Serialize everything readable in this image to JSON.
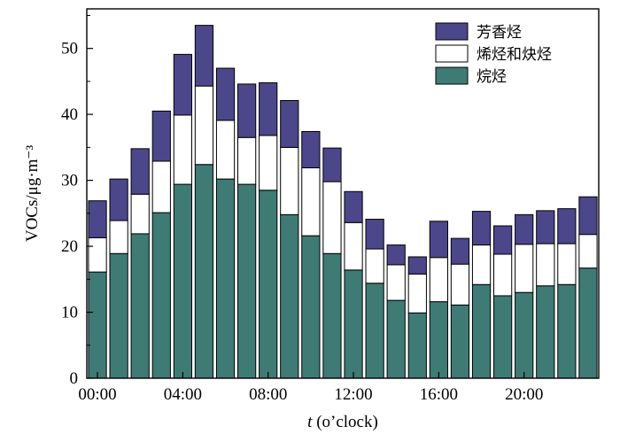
{
  "chart_data": {
    "type": "bar",
    "stacked": true,
    "x": [
      0,
      1,
      2,
      3,
      4,
      5,
      6,
      7,
      8,
      9,
      10,
      11,
      12,
      13,
      14,
      15,
      16,
      17,
      18,
      19,
      20,
      21,
      22,
      23
    ],
    "xticks": [
      "00:00",
      "04:00",
      "08:00",
      "12:00",
      "16:00",
      "20:00"
    ],
    "xtick_positions": [
      0,
      4,
      8,
      12,
      16,
      20
    ],
    "ylim": [
      0,
      56
    ],
    "yticks": [
      0,
      10,
      20,
      30,
      40,
      50
    ],
    "ylabel": "VOCs/μg·m⁻³",
    "xlabel_italic": "t",
    "xlabel_rest": " (o’clock)",
    "legend_position": "top-right",
    "grid": false,
    "series": [
      {
        "name": "烷烃",
        "color": "#3e7b74",
        "values": [
          16.1,
          18.9,
          21.9,
          25.1,
          29.4,
          32.4,
          30.2,
          29.4,
          28.5,
          24.8,
          21.6,
          18.9,
          16.4,
          14.4,
          11.8,
          9.9,
          11.6,
          11.1,
          14.2,
          12.5,
          13.0,
          14.0,
          14.2,
          16.7
        ]
      },
      {
        "name": "烯烃和炔烃",
        "color": "#ffffff",
        "values": [
          5.2,
          5.0,
          6.0,
          7.8,
          10.5,
          11.9,
          8.9,
          7.1,
          8.3,
          10.2,
          10.3,
          10.9,
          7.2,
          5.2,
          5.4,
          5.9,
          6.7,
          6.2,
          6.0,
          6.3,
          7.3,
          6.4,
          6.2,
          5.1
        ]
      },
      {
        "name": "芳香烃",
        "color": "#4b478a",
        "values": [
          5.6,
          6.3,
          6.9,
          7.6,
          9.2,
          9.2,
          7.9,
          8.1,
          8.0,
          7.1,
          5.5,
          5.1,
          4.7,
          4.5,
          3.0,
          2.6,
          5.5,
          3.9,
          5.1,
          4.3,
          4.5,
          5.0,
          5.3,
          5.7
        ]
      }
    ],
    "legend_order": [
      2,
      1,
      0
    ]
  }
}
